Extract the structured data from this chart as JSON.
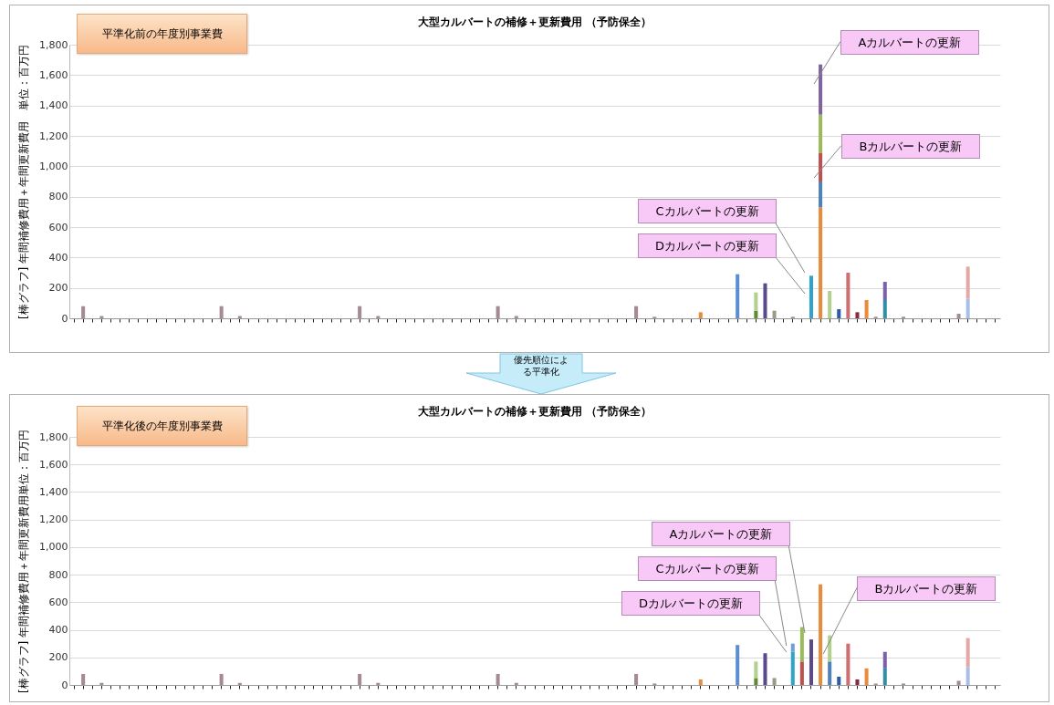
{
  "chart_data": [
    {
      "type": "bar",
      "title": "大型カルバートの補修＋更新費用 （予防保全）",
      "subtitle": "平準化前の年度別事業費",
      "ylabel": "[棒グラフ] 年間補修費用＋年間更新費用　単位：百万円",
      "categories": [
        null,
        null,
        null,
        null,
        null,
        null,
        null,
        null,
        null,
        null,
        null,
        null,
        null,
        null,
        null,
        null,
        null,
        null,
        null,
        null,
        null,
        null,
        null,
        null,
        null,
        null,
        null,
        null,
        null,
        null,
        null,
        null,
        null,
        null,
        null,
        null,
        null,
        null,
        null,
        null,
        null,
        null,
        null,
        null,
        null,
        null,
        null,
        null,
        null,
        null,
        null,
        null,
        null,
        null,
        null,
        null,
        null,
        null,
        null,
        null,
        null,
        null,
        null,
        null,
        null,
        null,
        null,
        null,
        null,
        null,
        null,
        null,
        null,
        null,
        null,
        null,
        null,
        null,
        null,
        null,
        null,
        null,
        null,
        null,
        null,
        null,
        null,
        null,
        null,
        null,
        null,
        null,
        null,
        null,
        null,
        null,
        null,
        null,
        null,
        null,
        null
      ],
      "stacked": true,
      "series": [
        {
          "values": [
            null,
            80,
            null,
            15,
            null,
            null,
            null,
            null,
            null,
            null,
            null,
            null,
            null,
            null,
            null,
            null,
            80,
            null,
            15,
            null,
            null,
            null,
            null,
            null,
            null,
            null,
            null,
            null,
            null,
            null,
            null,
            80,
            null,
            15,
            null,
            null,
            null,
            null,
            null,
            null,
            null,
            null,
            null,
            null,
            null,
            null,
            80,
            null,
            15,
            null,
            null,
            null,
            null,
            null,
            null,
            null,
            null,
            null,
            null,
            null,
            null,
            80,
            null,
            10,
            null,
            null,
            null,
            null,
            40,
            null,
            null,
            null,
            290,
            null,
            50,
            230,
            50,
            null,
            10,
            null,
            280,
            730,
            180,
            60,
            300,
            40,
            120,
            10,
            120,
            null,
            10,
            null,
            null,
            null,
            null,
            null,
            30,
            130,
            null,
            null,
            null
          ],
          "colors": [
            null,
            "#a48a92",
            null,
            "#a48a92",
            null,
            null,
            null,
            null,
            null,
            null,
            null,
            null,
            null,
            null,
            null,
            null,
            "#a48a92",
            null,
            "#a48a92",
            null,
            null,
            null,
            null,
            null,
            null,
            null,
            null,
            null,
            null,
            null,
            null,
            "#a48a92",
            null,
            "#a48a92",
            null,
            null,
            null,
            null,
            null,
            null,
            null,
            null,
            null,
            null,
            null,
            null,
            "#a48a92",
            null,
            "#a48a92",
            null,
            null,
            null,
            null,
            null,
            null,
            null,
            null,
            null,
            null,
            null,
            null,
            "#a48a92",
            null,
            "#a48a92",
            null,
            null,
            null,
            null,
            "#e98b3a",
            null,
            null,
            null,
            "#5b8fd0",
            null,
            "#5f8a2e",
            "#5a4a8c",
            "#9a9a88",
            null,
            "#a48a92",
            null,
            "#2fa3c8",
            "#e98b3a",
            "#b3d18e",
            "#2a5ca8",
            "#cf6f6f",
            "#8b2a3c",
            "#e98b3a",
            "#a48a92",
            "#2f8fa4",
            null,
            "#a48a92",
            null,
            null,
            null,
            null,
            null,
            "#a48a92",
            "#a8c0e8",
            null,
            null,
            null
          ]
        },
        {
          "values": [
            null,
            null,
            null,
            null,
            null,
            null,
            null,
            null,
            null,
            null,
            null,
            null,
            null,
            null,
            null,
            null,
            null,
            null,
            null,
            null,
            null,
            null,
            null,
            null,
            null,
            null,
            null,
            null,
            null,
            null,
            null,
            null,
            null,
            null,
            null,
            null,
            null,
            null,
            null,
            null,
            null,
            null,
            null,
            null,
            null,
            null,
            null,
            null,
            null,
            null,
            null,
            null,
            null,
            null,
            null,
            null,
            null,
            null,
            null,
            null,
            null,
            null,
            null,
            null,
            null,
            null,
            null,
            null,
            null,
            null,
            null,
            null,
            null,
            null,
            120,
            null,
            null,
            null,
            null,
            null,
            null,
            170,
            null,
            null,
            null,
            null,
            null,
            null,
            120,
            null,
            null,
            null,
            null,
            null,
            null,
            null,
            null,
            210,
            null,
            null,
            null
          ],
          "colors": [
            null,
            null,
            null,
            null,
            null,
            null,
            null,
            null,
            null,
            null,
            null,
            null,
            null,
            null,
            null,
            null,
            null,
            null,
            null,
            null,
            null,
            null,
            null,
            null,
            null,
            null,
            null,
            null,
            null,
            null,
            null,
            null,
            null,
            null,
            null,
            null,
            null,
            null,
            null,
            null,
            null,
            null,
            null,
            null,
            null,
            null,
            null,
            null,
            null,
            null,
            null,
            null,
            null,
            null,
            null,
            null,
            null,
            null,
            null,
            null,
            null,
            null,
            null,
            null,
            null,
            null,
            null,
            null,
            null,
            null,
            null,
            null,
            null,
            null,
            "#b3d18e",
            null,
            null,
            null,
            null,
            null,
            null,
            "#4f81bd",
            null,
            null,
            null,
            null,
            null,
            null,
            "#7b62a8",
            null,
            null,
            null,
            null,
            null,
            null,
            null,
            null,
            "#e4a9a4",
            null,
            null,
            null
          ]
        },
        {
          "values": [
            null,
            null,
            null,
            null,
            null,
            null,
            null,
            null,
            null,
            null,
            null,
            null,
            null,
            null,
            null,
            null,
            null,
            null,
            null,
            null,
            null,
            null,
            null,
            null,
            null,
            null,
            null,
            null,
            null,
            null,
            null,
            null,
            null,
            null,
            null,
            null,
            null,
            null,
            null,
            null,
            null,
            null,
            null,
            null,
            null,
            null,
            null,
            null,
            null,
            null,
            null,
            null,
            null,
            null,
            null,
            null,
            null,
            null,
            null,
            null,
            null,
            null,
            null,
            null,
            null,
            null,
            null,
            null,
            null,
            null,
            null,
            null,
            null,
            null,
            null,
            null,
            null,
            null,
            null,
            null,
            null,
            190,
            null,
            null,
            null,
            null,
            null,
            null,
            null,
            null,
            null,
            null,
            null,
            null,
            null,
            null,
            null,
            null,
            null,
            null,
            null
          ],
          "colors": [
            null,
            null,
            null,
            null,
            null,
            null,
            null,
            null,
            null,
            null,
            null,
            null,
            null,
            null,
            null,
            null,
            null,
            null,
            null,
            null,
            null,
            null,
            null,
            null,
            null,
            null,
            null,
            null,
            null,
            null,
            null,
            null,
            null,
            null,
            null,
            null,
            null,
            null,
            null,
            null,
            null,
            null,
            null,
            null,
            null,
            null,
            null,
            null,
            null,
            null,
            null,
            null,
            null,
            null,
            null,
            null,
            null,
            null,
            null,
            null,
            null,
            null,
            null,
            null,
            null,
            null,
            null,
            null,
            null,
            null,
            null,
            null,
            null,
            null,
            null,
            null,
            null,
            null,
            null,
            null,
            null,
            "#c0504d",
            null,
            null,
            null,
            null,
            null,
            null,
            null,
            null,
            null,
            null,
            null,
            null,
            null,
            null,
            null,
            null,
            null,
            null,
            null
          ]
        },
        {
          "values": [
            null,
            null,
            null,
            null,
            null,
            null,
            null,
            null,
            null,
            null,
            null,
            null,
            null,
            null,
            null,
            null,
            null,
            null,
            null,
            null,
            null,
            null,
            null,
            null,
            null,
            null,
            null,
            null,
            null,
            null,
            null,
            null,
            null,
            null,
            null,
            null,
            null,
            null,
            null,
            null,
            null,
            null,
            null,
            null,
            null,
            null,
            null,
            null,
            null,
            null,
            null,
            null,
            null,
            null,
            null,
            null,
            null,
            null,
            null,
            null,
            null,
            null,
            null,
            null,
            null,
            null,
            null,
            null,
            null,
            null,
            null,
            null,
            null,
            null,
            null,
            null,
            null,
            null,
            null,
            null,
            null,
            250,
            null,
            null,
            null,
            null,
            null,
            null,
            null,
            null,
            null,
            null,
            null,
            null,
            null,
            null,
            null,
            null,
            null,
            null,
            null
          ],
          "colors": [
            null,
            null,
            null,
            null,
            null,
            null,
            null,
            null,
            null,
            null,
            null,
            null,
            null,
            null,
            null,
            null,
            null,
            null,
            null,
            null,
            null,
            null,
            null,
            null,
            null,
            null,
            null,
            null,
            null,
            null,
            null,
            null,
            null,
            null,
            null,
            null,
            null,
            null,
            null,
            null,
            null,
            null,
            null,
            null,
            null,
            null,
            null,
            null,
            null,
            null,
            null,
            null,
            null,
            null,
            null,
            null,
            null,
            null,
            null,
            null,
            null,
            null,
            null,
            null,
            null,
            null,
            null,
            null,
            null,
            null,
            null,
            null,
            null,
            null,
            null,
            null,
            null,
            null,
            null,
            null,
            null,
            "#9bbb59",
            null,
            null,
            null,
            null,
            null,
            null,
            null,
            null,
            null,
            null,
            null,
            null,
            null,
            null,
            null,
            null,
            null,
            null,
            null
          ]
        },
        {
          "values": [
            null,
            null,
            null,
            null,
            null,
            null,
            null,
            null,
            null,
            null,
            null,
            null,
            null,
            null,
            null,
            null,
            null,
            null,
            null,
            null,
            null,
            null,
            null,
            null,
            null,
            null,
            null,
            null,
            null,
            null,
            null,
            null,
            null,
            null,
            null,
            null,
            null,
            null,
            null,
            null,
            null,
            null,
            null,
            null,
            null,
            null,
            null,
            null,
            null,
            null,
            null,
            null,
            null,
            null,
            null,
            null,
            null,
            null,
            null,
            null,
            null,
            null,
            null,
            null,
            null,
            null,
            null,
            null,
            null,
            null,
            null,
            null,
            null,
            null,
            null,
            null,
            null,
            null,
            null,
            null,
            null,
            330,
            null,
            null,
            null,
            null,
            null,
            null,
            null,
            null,
            null,
            null,
            null,
            null,
            null,
            null,
            null,
            null,
            null,
            null,
            null
          ],
          "colors": [
            null,
            null,
            null,
            null,
            null,
            null,
            null,
            null,
            null,
            null,
            null,
            null,
            null,
            null,
            null,
            null,
            null,
            null,
            null,
            null,
            null,
            null,
            null,
            null,
            null,
            null,
            null,
            null,
            null,
            null,
            null,
            null,
            null,
            null,
            null,
            null,
            null,
            null,
            null,
            null,
            null,
            null,
            null,
            null,
            null,
            null,
            null,
            null,
            null,
            null,
            null,
            null,
            null,
            null,
            null,
            null,
            null,
            null,
            null,
            null,
            null,
            null,
            null,
            null,
            null,
            null,
            null,
            null,
            null,
            null,
            null,
            null,
            null,
            null,
            null,
            null,
            null,
            null,
            null,
            null,
            null,
            "#8064a2",
            null,
            null,
            null,
            null,
            null,
            null,
            null,
            null,
            null,
            null,
            null,
            null,
            null,
            null,
            null,
            null,
            null,
            null,
            null
          ]
        }
      ],
      "ylim": [
        0,
        1800
      ],
      "yticks": [
        0,
        200,
        400,
        600,
        800,
        {
          "value": 1000,
          "label": "1,000"
        },
        {
          "value": 1200,
          "label": "1,200"
        },
        {
          "value": 1400,
          "label": "1,400"
        },
        {
          "value": 1600,
          "label": "1,600"
        },
        {
          "value": 1800,
          "label": "1,800"
        }
      ],
      "grid": "y",
      "annotations": [
        "Aカルバートの更新",
        "Bカルバートの更新",
        "Cカルバートの更新",
        "Dカルバートの更新"
      ]
    },
    {
      "type": "bar",
      "title": "大型カルバートの補修＋更新費用 （予防保全）",
      "subtitle": "平準化後の年度別事業費",
      "ylabel": "[棒グラフ] 年間補修費用＋年間更新費用単位：百万円",
      "categories": [
        null,
        null,
        null,
        null,
        null,
        null,
        null,
        null,
        null,
        null,
        null,
        null,
        null,
        null,
        null,
        null,
        null,
        null,
        null,
        null,
        null,
        null,
        null,
        null,
        null,
        null,
        null,
        null,
        null,
        null,
        null,
        null,
        null,
        null,
        null,
        null,
        null,
        null,
        null,
        null,
        null,
        null,
        null,
        null,
        null,
        null,
        null,
        null,
        null,
        null,
        null,
        null,
        null,
        null,
        null,
        null,
        null,
        null,
        null,
        null,
        null,
        null,
        null,
        null,
        null,
        null,
        null,
        null,
        null,
        null,
        null,
        null,
        null,
        null,
        null,
        null,
        null,
        null,
        null,
        null,
        null,
        null,
        null,
        null,
        null,
        null,
        null,
        null,
        null,
        null,
        null,
        null,
        null,
        null,
        null,
        null,
        null,
        null,
        null,
        null,
        null
      ],
      "stacked": true,
      "series": [
        {
          "values": [
            null,
            80,
            null,
            15,
            null,
            null,
            null,
            null,
            null,
            null,
            null,
            null,
            null,
            null,
            null,
            null,
            80,
            null,
            15,
            null,
            null,
            null,
            null,
            null,
            null,
            null,
            null,
            null,
            null,
            null,
            null,
            80,
            null,
            15,
            null,
            null,
            null,
            null,
            null,
            null,
            null,
            null,
            null,
            null,
            null,
            null,
            80,
            null,
            15,
            null,
            null,
            null,
            null,
            null,
            null,
            null,
            null,
            null,
            null,
            null,
            null,
            80,
            null,
            10,
            null,
            null,
            null,
            null,
            40,
            null,
            null,
            null,
            290,
            null,
            50,
            230,
            50,
            null,
            240,
            170,
            330,
            730,
            170,
            60,
            300,
            40,
            120,
            10,
            120,
            null,
            10,
            null,
            null,
            null,
            null,
            null,
            30,
            130,
            null,
            null,
            null
          ],
          "colors": [
            null,
            "#a48a92",
            null,
            "#a48a92",
            null,
            null,
            null,
            null,
            null,
            null,
            null,
            null,
            null,
            null,
            null,
            null,
            "#a48a92",
            null,
            "#a48a92",
            null,
            null,
            null,
            null,
            null,
            null,
            null,
            null,
            null,
            null,
            null,
            null,
            "#a48a92",
            null,
            "#a48a92",
            null,
            null,
            null,
            null,
            null,
            null,
            null,
            null,
            null,
            null,
            null,
            null,
            "#a48a92",
            null,
            "#a48a92",
            null,
            null,
            null,
            null,
            null,
            null,
            null,
            null,
            null,
            null,
            null,
            null,
            "#a48a92",
            null,
            "#a48a92",
            null,
            null,
            null,
            null,
            "#e98b3a",
            null,
            null,
            null,
            "#5b8fd0",
            null,
            "#5f8a2e",
            "#5a4a8c",
            "#9a9a88",
            null,
            "#2fa3c8",
            "#c0504d",
            "#5a4a8c",
            "#e98b3a",
            "#4f81bd",
            "#2a5ca8",
            "#cf6f6f",
            "#8b2a3c",
            "#e98b3a",
            "#a48a92",
            "#2f8fa4",
            null,
            "#a48a92",
            null,
            null,
            null,
            null,
            null,
            "#a48a92",
            "#a8c0e8",
            null,
            null,
            null
          ]
        },
        {
          "values": [
            null,
            null,
            null,
            null,
            null,
            null,
            null,
            null,
            null,
            null,
            null,
            null,
            null,
            null,
            null,
            null,
            null,
            null,
            null,
            null,
            null,
            null,
            null,
            null,
            null,
            null,
            null,
            null,
            null,
            null,
            null,
            null,
            null,
            null,
            null,
            null,
            null,
            null,
            null,
            null,
            null,
            null,
            null,
            null,
            null,
            null,
            null,
            null,
            null,
            null,
            null,
            null,
            null,
            null,
            null,
            null,
            null,
            null,
            null,
            null,
            null,
            null,
            null,
            null,
            null,
            null,
            null,
            null,
            null,
            null,
            null,
            null,
            null,
            null,
            120,
            null,
            null,
            null,
            60,
            250,
            null,
            null,
            190,
            null,
            null,
            null,
            null,
            null,
            120,
            null,
            null,
            null,
            null,
            null,
            null,
            null,
            null,
            210,
            null,
            null,
            null
          ],
          "colors": [
            null,
            null,
            null,
            null,
            null,
            null,
            null,
            null,
            null,
            null,
            null,
            null,
            null,
            null,
            null,
            null,
            null,
            null,
            null,
            null,
            null,
            null,
            null,
            null,
            null,
            null,
            null,
            null,
            null,
            null,
            null,
            null,
            null,
            null,
            null,
            null,
            null,
            null,
            null,
            null,
            null,
            null,
            null,
            null,
            null,
            null,
            null,
            null,
            null,
            null,
            null,
            null,
            null,
            null,
            null,
            null,
            null,
            null,
            null,
            null,
            null,
            null,
            null,
            null,
            null,
            null,
            null,
            null,
            null,
            null,
            null,
            null,
            null,
            null,
            "#b3d18e",
            null,
            null,
            null,
            "#6f9fd8",
            "#9bbb59",
            null,
            null,
            "#b3d18e",
            null,
            null,
            null,
            null,
            null,
            "#7b62a8",
            null,
            null,
            null,
            null,
            null,
            null,
            null,
            null,
            "#e4a9a4",
            null,
            null,
            null
          ]
        }
      ],
      "ylim": [
        0,
        1800
      ],
      "yticks": [
        0,
        200,
        400,
        600,
        800,
        {
          "value": 1000,
          "label": "1,000"
        },
        {
          "value": 1200,
          "label": "1,200"
        },
        {
          "value": 1400,
          "label": "1,400"
        },
        {
          "value": 1600,
          "label": "1,600"
        },
        {
          "value": 1800,
          "label": "1,800"
        }
      ],
      "grid": "y",
      "annotations": [
        "Aカルバートの更新",
        "Cカルバートの更新",
        "Dカルバートの更新",
        "Bカルバートの更新",
        "優先順位による平準化"
      ]
    }
  ]
}
